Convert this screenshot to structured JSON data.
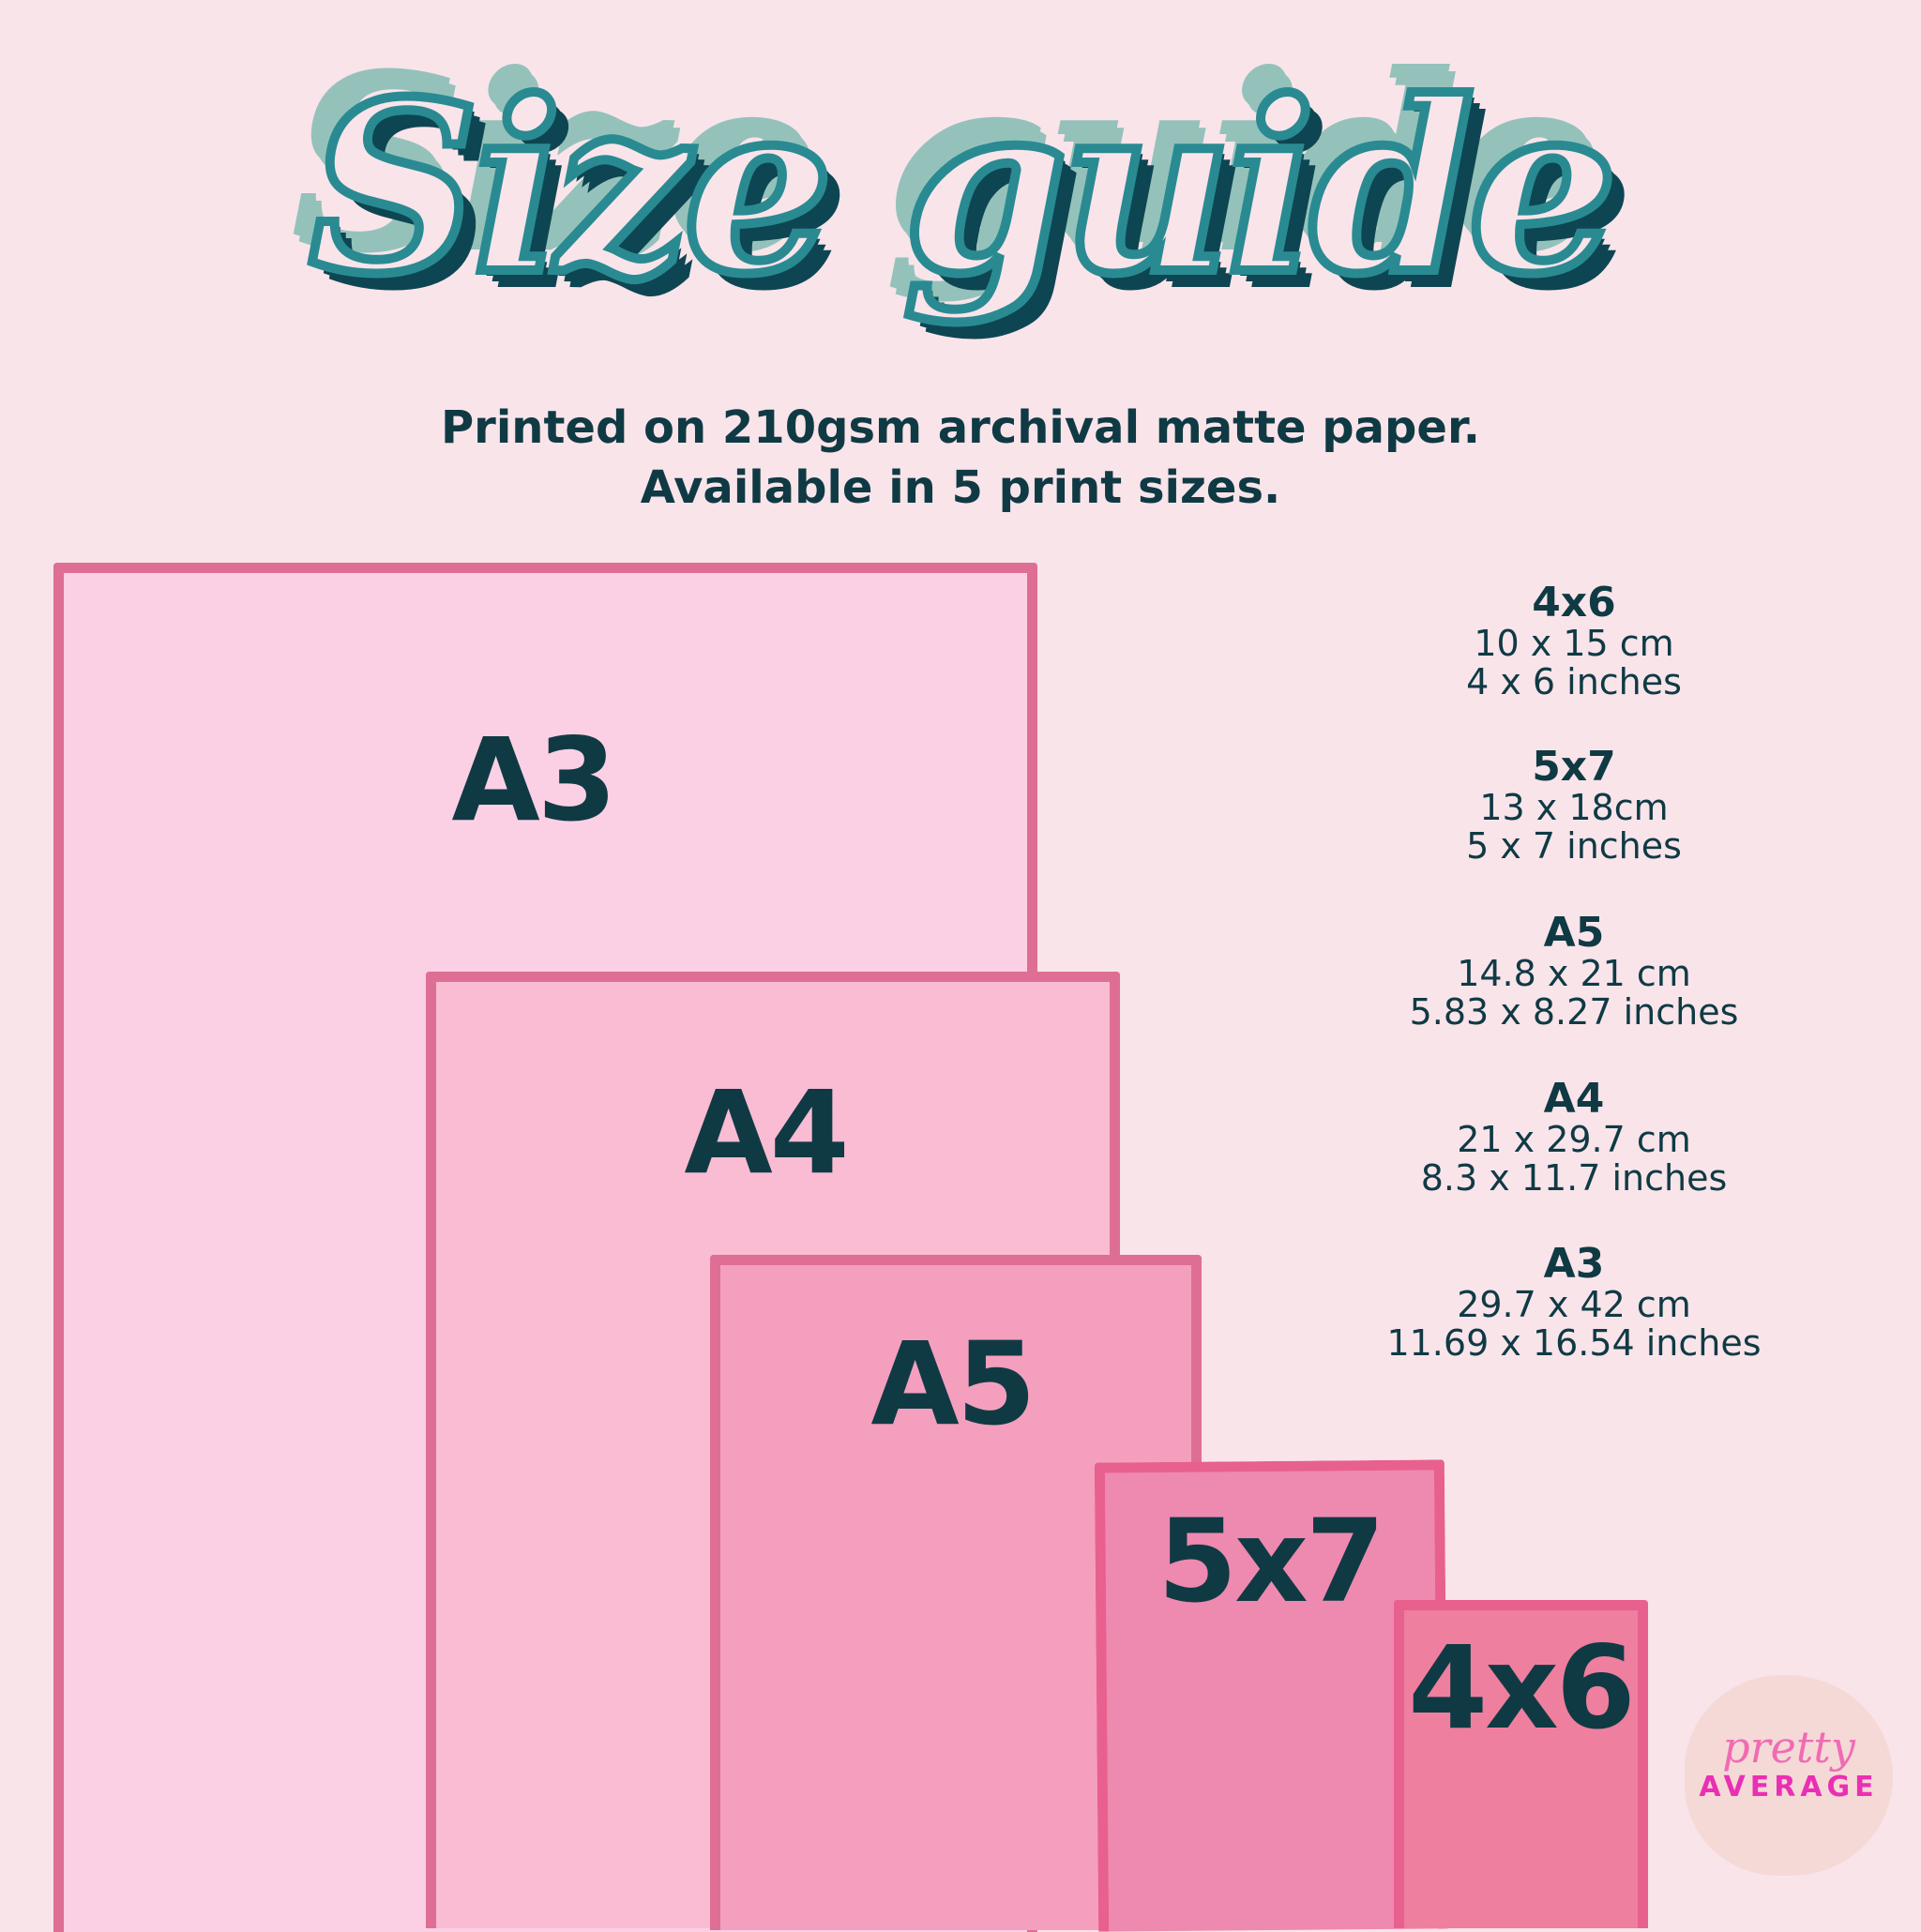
{
  "title": "Size guide",
  "subtitle": {
    "line1": "Printed on 210gsm archival matte paper.",
    "line2": "Available in 5 print sizes."
  },
  "rectangles": [
    {
      "label": "A3",
      "fill": "#fbd0e5",
      "border": "#de6e93"
    },
    {
      "label": "A4",
      "fill": "#f9bcd3",
      "border": "#de6e93"
    },
    {
      "label": "A5",
      "fill": "#f49fbe",
      "border": "#de6e93"
    },
    {
      "label": "5x7",
      "fill": "#ee89b0",
      "border": "#e8608e"
    },
    {
      "label": "4x6",
      "fill": "#ee7f9e",
      "border": "#e8608e"
    }
  ],
  "specs": [
    {
      "name": "4x6",
      "cm": "10 x 15 cm",
      "inches": "4 x 6 inches"
    },
    {
      "name": "5x7",
      "cm": "13 x 18cm",
      "inches": "5 x 7 inches"
    },
    {
      "name": "A5",
      "cm": "14.8 x 21 cm",
      "inches": "5.83 x 8.27 inches"
    },
    {
      "name": "A4",
      "cm": "21 x 29.7 cm",
      "inches": "8.3 x 11.7 inches"
    },
    {
      "name": "A3",
      "cm": "29.7 x 42 cm",
      "inches": "11.69 x 16.54 inches"
    }
  ],
  "logo": {
    "line1": "pretty",
    "line2": "AVERAGE"
  }
}
